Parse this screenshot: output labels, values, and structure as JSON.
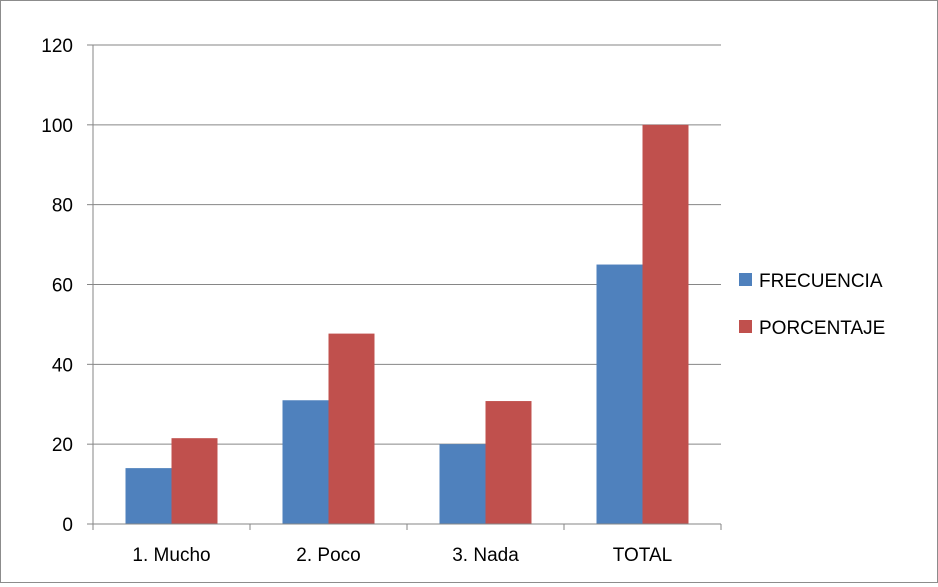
{
  "chart_data": {
    "type": "bar",
    "categories": [
      "1. Mucho",
      "2.  Poco",
      "3. Nada",
      "TOTAL"
    ],
    "series": [
      {
        "name": "FRECUENCIA",
        "color": "#4f81bd",
        "values": [
          14,
          31,
          20,
          65
        ]
      },
      {
        "name": "PORCENTAJE",
        "color": "#c0504d",
        "values": [
          21.5,
          47.7,
          30.8,
          100
        ]
      }
    ],
    "ylim": [
      0,
      120
    ],
    "yticks": [
      0,
      20,
      40,
      60,
      80,
      100,
      120
    ],
    "grid": true,
    "legend": "right"
  }
}
